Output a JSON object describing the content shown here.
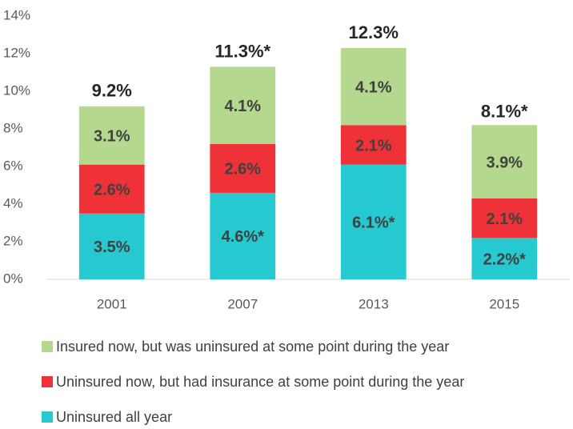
{
  "chart_data": {
    "type": "stacked_bar",
    "categories": [
      "2001",
      "2007",
      "2013",
      "2015"
    ],
    "series": [
      {
        "name": "Uninsured all year",
        "color": "#26c9d0",
        "values": [
          3.5,
          4.6,
          6.1,
          2.2
        ],
        "value_labels": [
          "3.5%",
          "4.6%*",
          "6.1%*",
          "2.2%*"
        ]
      },
      {
        "name": "Uninsured now, but had insurance at some point during the year",
        "color": "#ef3237",
        "values": [
          2.6,
          2.6,
          2.1,
          2.1
        ],
        "value_labels": [
          "2.6%",
          "2.6%",
          "2.1%",
          "2.1%"
        ]
      },
      {
        "name": "Insured now, but was uninsured at some point during the year",
        "color": "#b3d88e",
        "values": [
          3.1,
          4.1,
          4.1,
          3.9
        ],
        "value_labels": [
          "3.1%",
          "4.1%",
          "4.1%",
          "3.9%"
        ]
      }
    ],
    "totals": {
      "values": [
        9.2,
        11.3,
        12.3,
        8.1
      ],
      "value_labels": [
        "9.2%",
        "11.3%*",
        "12.3%",
        "8.1%*"
      ]
    },
    "ylim": [
      0,
      14
    ],
    "yticks": [
      {
        "value": 0,
        "label": "0%"
      },
      {
        "value": 2,
        "label": "2%"
      },
      {
        "value": 4,
        "label": "4%"
      },
      {
        "value": 6,
        "label": "6%"
      },
      {
        "value": 8,
        "label": "8%"
      },
      {
        "value": 10,
        "label": "10%"
      },
      {
        "value": 12,
        "label": "12%"
      },
      {
        "value": 14,
        "label": "14%"
      }
    ],
    "grid": false
  }
}
